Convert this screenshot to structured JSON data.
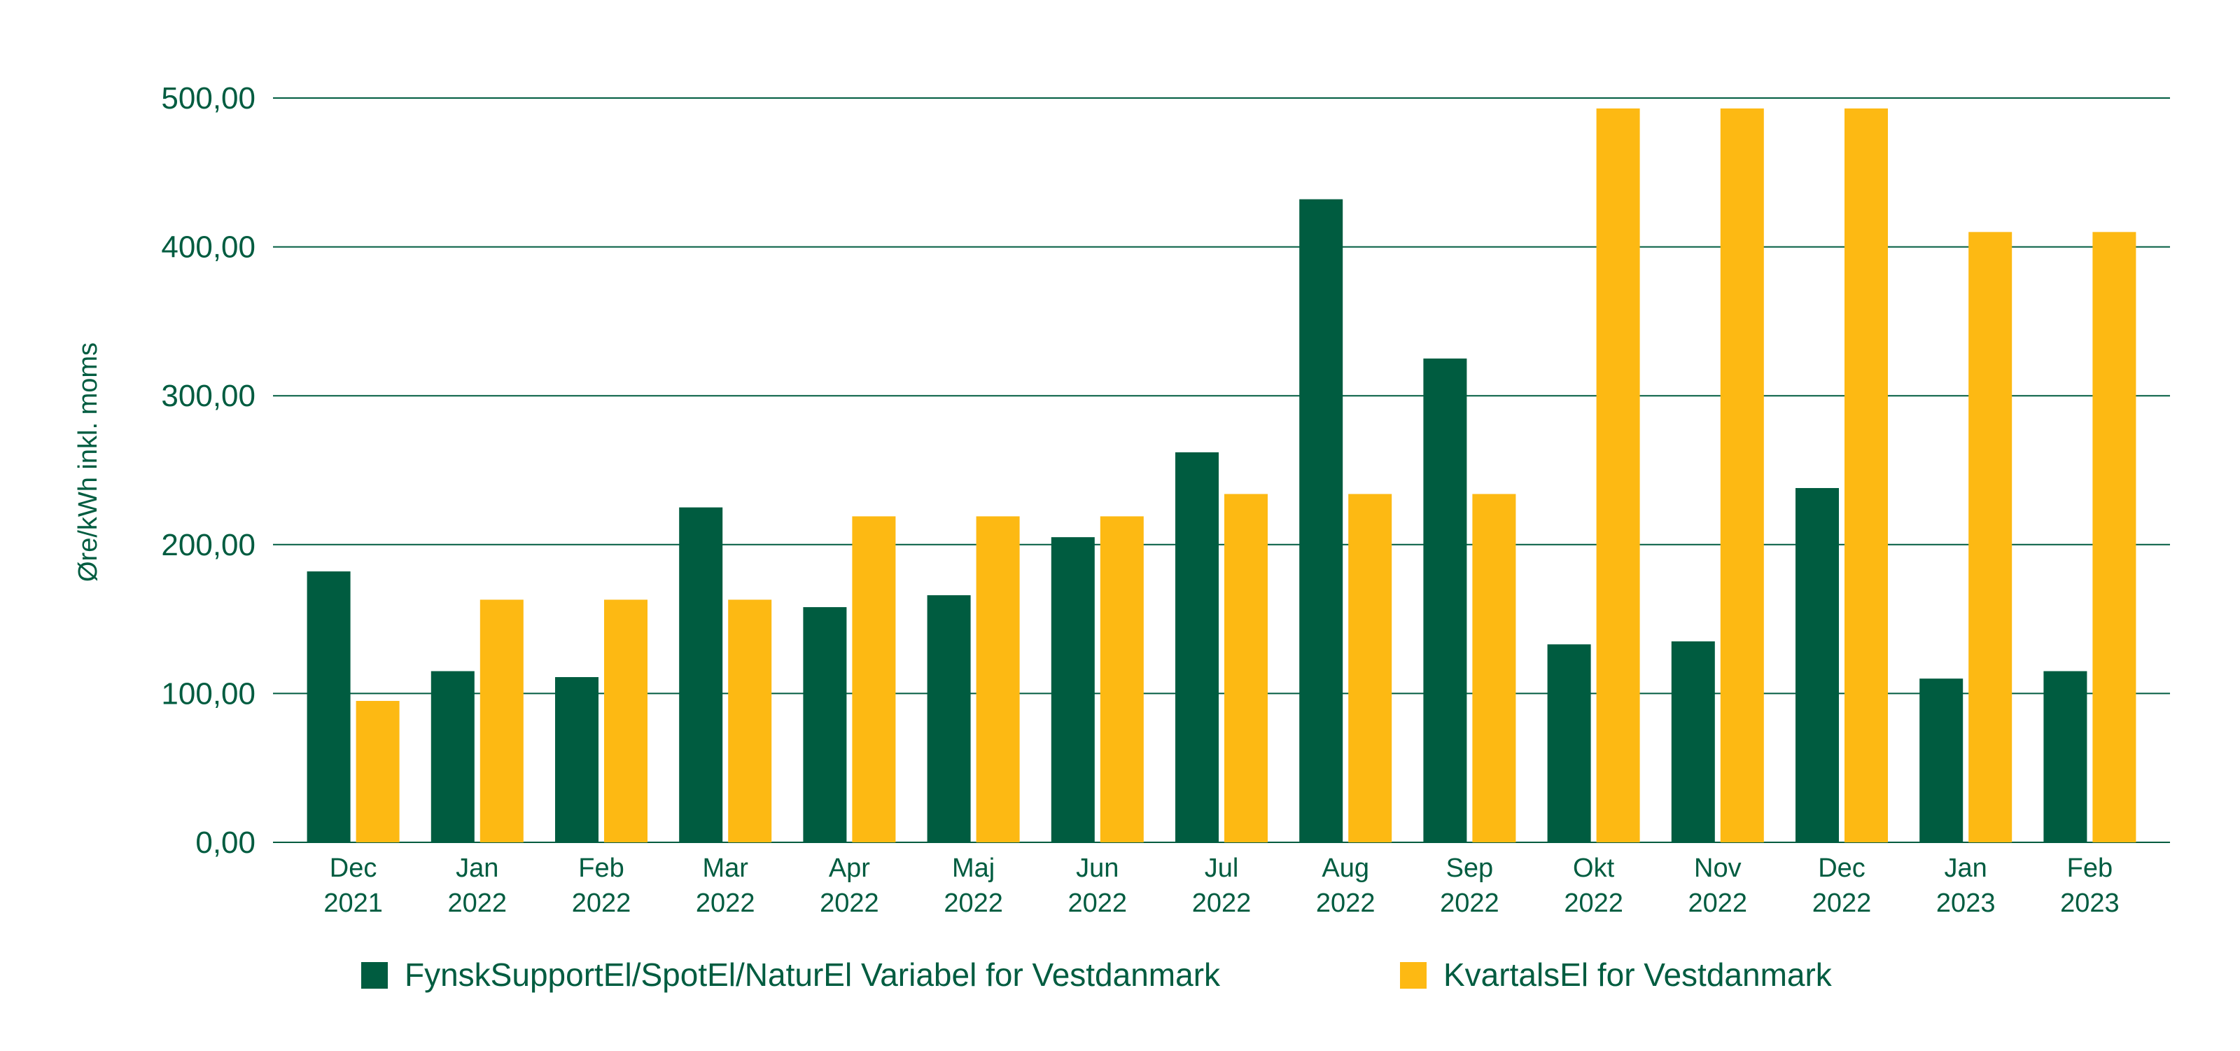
{
  "colors": {
    "primary": "#005c40",
    "accent": "#fdb913",
    "grid": "#005c40",
    "text": "#005c40"
  },
  "chart_data": {
    "type": "bar",
    "title": "",
    "xlabel": "",
    "ylabel": "Øre/kWh inkl. moms",
    "ylim": [
      0,
      500
    ],
    "yticks": [
      "0,00",
      "100,00",
      "200,00",
      "300,00",
      "400,00",
      "500,00"
    ],
    "grid": true,
    "legend_position": "bottom",
    "categories": [
      [
        "Dec",
        "2021"
      ],
      [
        "Jan",
        "2022"
      ],
      [
        "Feb",
        "2022"
      ],
      [
        "Mar",
        "2022"
      ],
      [
        "Apr",
        "2022"
      ],
      [
        "Maj",
        "2022"
      ],
      [
        "Jun",
        "2022"
      ],
      [
        "Jul",
        "2022"
      ],
      [
        "Aug",
        "2022"
      ],
      [
        "Sep",
        "2022"
      ],
      [
        "Okt",
        "2022"
      ],
      [
        "Nov",
        "2022"
      ],
      [
        "Dec",
        "2022"
      ],
      [
        "Jan",
        "2023"
      ],
      [
        "Feb",
        "2023"
      ]
    ],
    "series": [
      {
        "name": "FynskSupportEl/SpotEl/NaturEl Variabel for Vestdanmark",
        "color": "#005c40",
        "values": [
          182,
          115,
          111,
          225,
          158,
          166,
          205,
          262,
          432,
          325,
          133,
          135,
          238,
          110,
          115
        ]
      },
      {
        "name": "KvartalsEl for Vestdanmark",
        "color": "#fdb913",
        "values": [
          95,
          163,
          163,
          163,
          219,
          219,
          219,
          234,
          234,
          234,
          493,
          493,
          493,
          410,
          410
        ]
      }
    ]
  }
}
